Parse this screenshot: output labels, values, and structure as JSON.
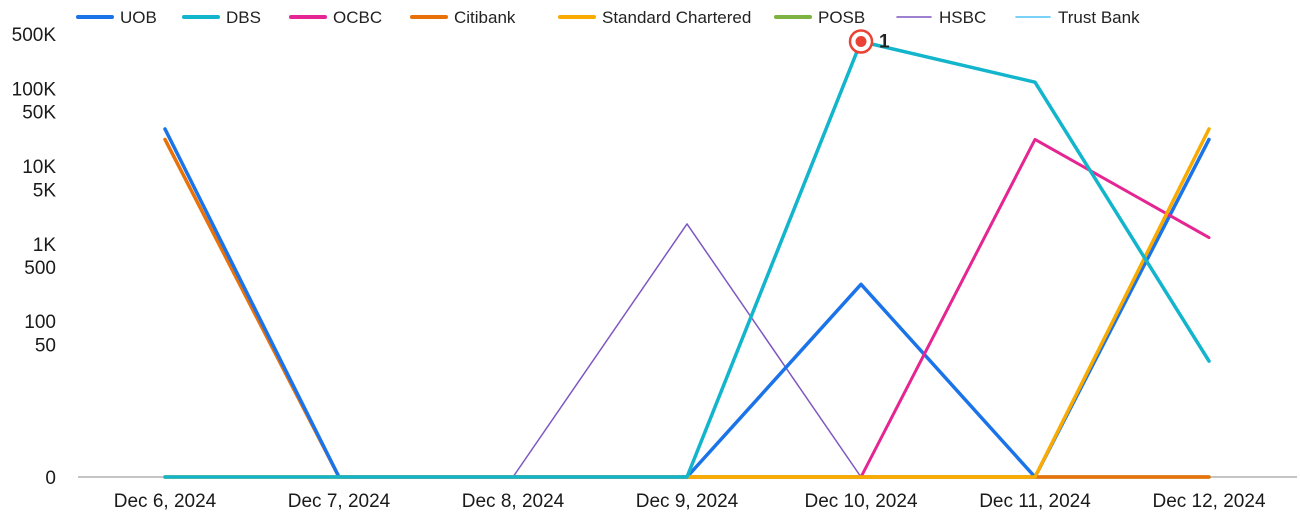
{
  "chart_data": {
    "type": "line",
    "title": "",
    "xlabel": "",
    "ylabel": "",
    "yscale": "symlog",
    "ylim": [
      0,
      500000
    ],
    "grid": false,
    "legend_position": "top",
    "categories": [
      "Dec 6, 2024",
      "Dec 7, 2024",
      "Dec 8, 2024",
      "Dec 9, 2024",
      "Dec 10, 2024",
      "Dec 11, 2024",
      "Dec 12, 2024"
    ],
    "y_ticks": [
      {
        "value": 0,
        "label": "0"
      },
      {
        "value": 50,
        "label": "50"
      },
      {
        "value": 100,
        "label": "100"
      },
      {
        "value": 500,
        "label": "500"
      },
      {
        "value": 1000,
        "label": "1K"
      },
      {
        "value": 5000,
        "label": "5K"
      },
      {
        "value": 10000,
        "label": "10K"
      },
      {
        "value": 50000,
        "label": "50K"
      },
      {
        "value": 100000,
        "label": "100K"
      },
      {
        "value": 500000,
        "label": "500K"
      }
    ],
    "series": [
      {
        "name": "UOB",
        "color": "#1a73e8",
        "width": 3.5,
        "values": [
          30000,
          0,
          0,
          0,
          300,
          0,
          22000
        ]
      },
      {
        "name": "DBS",
        "color": "#12b5cb",
        "width": 3.5,
        "values": [
          0,
          0,
          0,
          0,
          400000,
          120000,
          30
        ]
      },
      {
        "name": "OCBC",
        "color": "#e52592",
        "width": 3,
        "values": [
          0,
          0,
          0,
          0,
          0,
          22000,
          1200
        ]
      },
      {
        "name": "Citibank",
        "color": "#e8710a",
        "width": 3.5,
        "values": [
          22000,
          0,
          0,
          0,
          0,
          0,
          0
        ]
      },
      {
        "name": "Standard Chartered",
        "color": "#f9ab00",
        "width": 3.5,
        "values": [
          0,
          0,
          0,
          0,
          0,
          0,
          30000
        ]
      },
      {
        "name": "POSB",
        "color": "#7cb342",
        "width": 3.5,
        "values": [
          0,
          0,
          0,
          0,
          0,
          0,
          0
        ]
      },
      {
        "name": "HSBC",
        "color": "#7e57c2",
        "width": 1.5,
        "values": [
          0,
          0,
          0,
          1800,
          0,
          0,
          0
        ]
      },
      {
        "name": "Trust Bank",
        "color": "#4fc3f7",
        "width": 1.5,
        "values": [
          0,
          0,
          0,
          0,
          0,
          0,
          0
        ]
      }
    ],
    "annotations": [
      {
        "series": "DBS",
        "category": "Dec 10, 2024",
        "label": "1",
        "marker_color": "#ea4335"
      }
    ]
  }
}
